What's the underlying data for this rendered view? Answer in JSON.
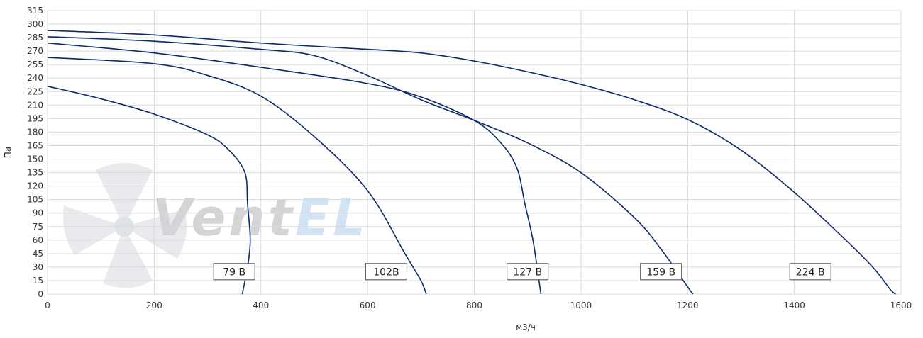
{
  "chart_data": {
    "type": "line",
    "title": "",
    "xlabel": "м3/ч",
    "ylabel": "Па",
    "xlim": [
      0,
      1600
    ],
    "ylim": [
      0,
      315
    ],
    "x_ticks": [
      0,
      200,
      400,
      600,
      800,
      1000,
      1200,
      1400,
      1600
    ],
    "y_ticks": [
      0,
      15,
      30,
      45,
      60,
      75,
      90,
      105,
      120,
      135,
      150,
      165,
      180,
      195,
      210,
      225,
      240,
      255,
      270,
      285,
      300,
      315
    ],
    "grid": true,
    "colors": {
      "curve": "#0d2b6b",
      "grid": "#d9d9d9"
    },
    "watermark": {
      "text": "VentEL",
      "icon": "fan-blade-icon"
    },
    "series": [
      {
        "label": "79 В",
        "label_at": [
          350,
          25
        ],
        "points": [
          [
            0,
            231
          ],
          [
            100,
            217
          ],
          [
            200,
            200
          ],
          [
            300,
            177
          ],
          [
            340,
            160
          ],
          [
            370,
            135
          ],
          [
            375,
            100
          ],
          [
            380,
            60
          ],
          [
            375,
            30
          ],
          [
            365,
            0
          ]
        ]
      },
      {
        "label": "102В",
        "label_at": [
          635,
          25
        ],
        "points": [
          [
            0,
            263
          ],
          [
            200,
            256
          ],
          [
            300,
            243
          ],
          [
            400,
            220
          ],
          [
            500,
            175
          ],
          [
            600,
            115
          ],
          [
            670,
            45
          ],
          [
            700,
            15
          ],
          [
            710,
            0
          ]
        ]
      },
      {
        "label": "127 В",
        "label_at": [
          900,
          25
        ],
        "points": [
          [
            0,
            279
          ],
          [
            200,
            268
          ],
          [
            400,
            252
          ],
          [
            600,
            234
          ],
          [
            700,
            219
          ],
          [
            800,
            193
          ],
          [
            850,
            168
          ],
          [
            880,
            140
          ],
          [
            895,
            100
          ],
          [
            910,
            60
          ],
          [
            920,
            20
          ],
          [
            925,
            0
          ]
        ]
      },
      {
        "label": "159 В",
        "label_at": [
          1150,
          25
        ],
        "points": [
          [
            0,
            286
          ],
          [
            200,
            281
          ],
          [
            400,
            272
          ],
          [
            500,
            265
          ],
          [
            600,
            243
          ],
          [
            700,
            216
          ],
          [
            800,
            193
          ],
          [
            900,
            168
          ],
          [
            1000,
            135
          ],
          [
            1100,
            85
          ],
          [
            1150,
            50
          ],
          [
            1200,
            8
          ],
          [
            1210,
            0
          ]
        ]
      },
      {
        "label": "224 В",
        "label_at": [
          1430,
          25
        ],
        "points": [
          [
            0,
            293
          ],
          [
            200,
            288
          ],
          [
            400,
            279
          ],
          [
            600,
            272
          ],
          [
            700,
            268
          ],
          [
            800,
            259
          ],
          [
            900,
            247
          ],
          [
            1000,
            233
          ],
          [
            1100,
            216
          ],
          [
            1200,
            194
          ],
          [
            1300,
            160
          ],
          [
            1400,
            113
          ],
          [
            1500,
            58
          ],
          [
            1550,
            28
          ],
          [
            1580,
            5
          ],
          [
            1590,
            0
          ]
        ]
      }
    ]
  }
}
